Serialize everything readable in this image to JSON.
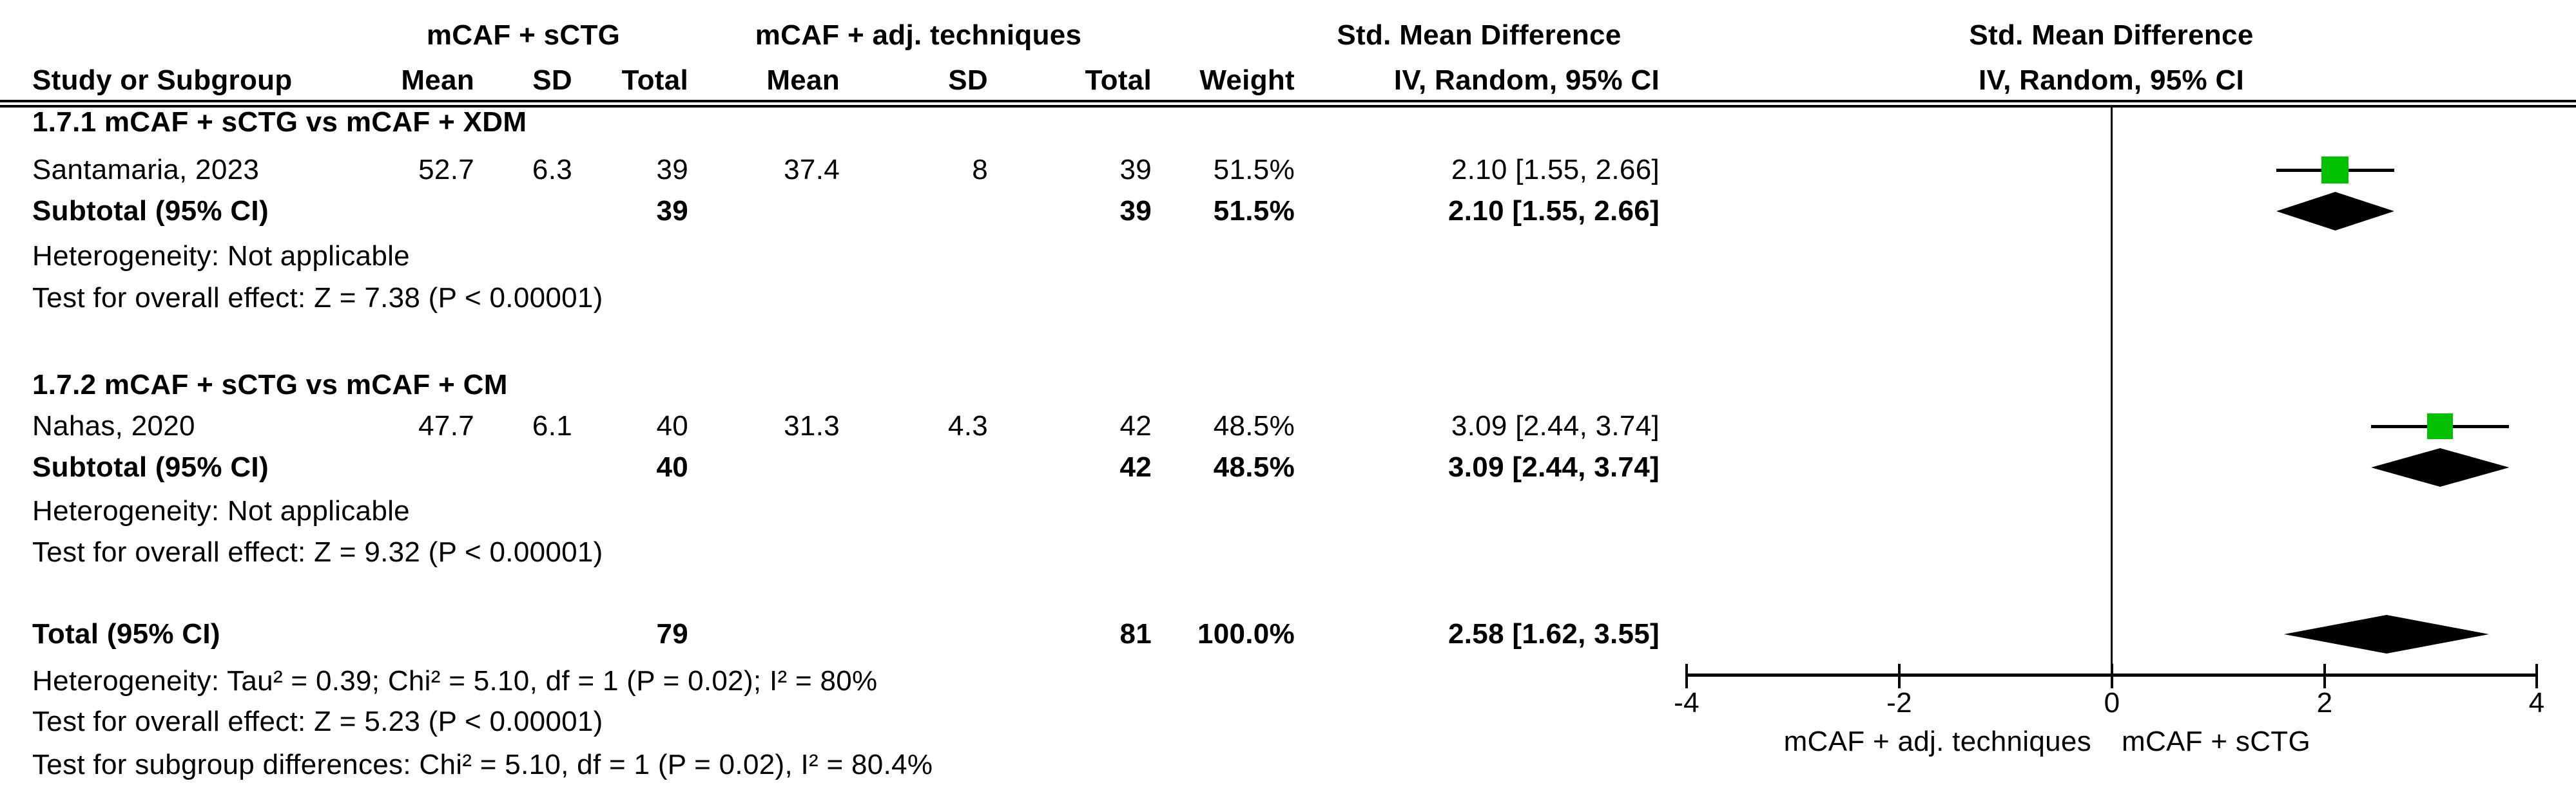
{
  "header": {
    "group1": "mCAF + sCTG",
    "group2": "mCAF + adj. techniques",
    "effect_title": "Std. Mean Difference",
    "col_study": "Study or Subgroup",
    "col_mean1": "Mean",
    "col_sd1": "SD",
    "col_total1": "Total",
    "col_mean2": "Mean",
    "col_sd2": "SD",
    "col_total2": "Total",
    "col_weight": "Weight",
    "col_method": "IV, Random, 95% CI",
    "plot_title": "Std. Mean Difference",
    "plot_method": "IV, Random, 95% CI"
  },
  "subgroups": [
    {
      "title": "1.7.1 mCAF + sCTG vs mCAF + XDM",
      "study": {
        "name": "Santamaria, 2023",
        "mean1": "52.7",
        "sd1": "6.3",
        "total1": "39",
        "mean2": "37.4",
        "sd2": "8",
        "total2": "39",
        "weight": "51.5%",
        "ci": "2.10 [1.55, 2.66]"
      },
      "subtotal": {
        "label": "Subtotal (95% CI)",
        "total1": "39",
        "total2": "39",
        "weight": "51.5%",
        "ci": "2.10 [1.55, 2.66]"
      },
      "heterogeneity": "Heterogeneity: Not applicable",
      "overall_effect": "Test for overall effect: Z = 7.38 (P < 0.00001)"
    },
    {
      "title": "1.7.2 mCAF + sCTG vs mCAF + CM",
      "study": {
        "name": "Nahas, 2020",
        "mean1": "47.7",
        "sd1": "6.1",
        "total1": "40",
        "mean2": "31.3",
        "sd2": "4.3",
        "total2": "42",
        "weight": "48.5%",
        "ci": "3.09 [2.44, 3.74]"
      },
      "subtotal": {
        "label": "Subtotal (95% CI)",
        "total1": "40",
        "total2": "42",
        "weight": "48.5%",
        "ci": "3.09 [2.44, 3.74]"
      },
      "heterogeneity": "Heterogeneity: Not applicable",
      "overall_effect": "Test for overall effect: Z = 9.32 (P < 0.00001)"
    }
  ],
  "total": {
    "label": "Total (95% CI)",
    "total1": "79",
    "total2": "81",
    "weight": "100.0%",
    "ci": "2.58 [1.62, 3.55]",
    "heterogeneity": "Heterogeneity: Tau² = 0.39; Chi² = 5.10, df = 1 (P = 0.02); I² = 80%",
    "overall_effect": "Test for overall effect: Z = 5.23 (P < 0.00001)",
    "subgroup_differences": "Test for subgroup differences: Chi² = 5.10, df = 1 (P = 0.02), I² = 80.4%"
  },
  "axis": {
    "ticks": [
      "-4",
      "-2",
      "0",
      "2",
      "4"
    ],
    "label_left": "mCAF + adj. techniques",
    "label_right": "mCAF + sCTG"
  },
  "colors": {
    "marker_green": "#00c000",
    "diamond_black": "#000000"
  },
  "chart_data": {
    "type": "forest",
    "effect_measure": "Std. Mean Difference",
    "method": "IV, Random, 95% CI",
    "xlim": [
      -4,
      4
    ],
    "x_ticks": [
      -4,
      -2,
      0,
      2,
      4
    ],
    "xlabel_left": "mCAF + adj. techniques",
    "xlabel_right": "mCAF + sCTG",
    "grid": false,
    "points": [
      {
        "id": "santamaria",
        "label": "Santamaria, 2023",
        "marker": "square",
        "est": 2.1,
        "ci": [
          1.55,
          2.66
        ],
        "weight": 51.5
      },
      {
        "id": "subtotal1",
        "label": "Subtotal 1.7.1 (95% CI)",
        "marker": "diamond",
        "est": 2.1,
        "ci": [
          1.55,
          2.66
        ],
        "weight": 51.5
      },
      {
        "id": "nahas",
        "label": "Nahas, 2020",
        "marker": "square",
        "est": 3.09,
        "ci": [
          2.44,
          3.74
        ],
        "weight": 48.5
      },
      {
        "id": "subtotal2",
        "label": "Subtotal 1.7.2 (95% CI)",
        "marker": "diamond",
        "est": 3.09,
        "ci": [
          2.44,
          3.74
        ],
        "weight": 48.5
      },
      {
        "id": "total",
        "label": "Total (95% CI)",
        "marker": "diamond",
        "est": 2.58,
        "ci": [
          1.62,
          3.55
        ],
        "weight": 100.0
      }
    ]
  }
}
